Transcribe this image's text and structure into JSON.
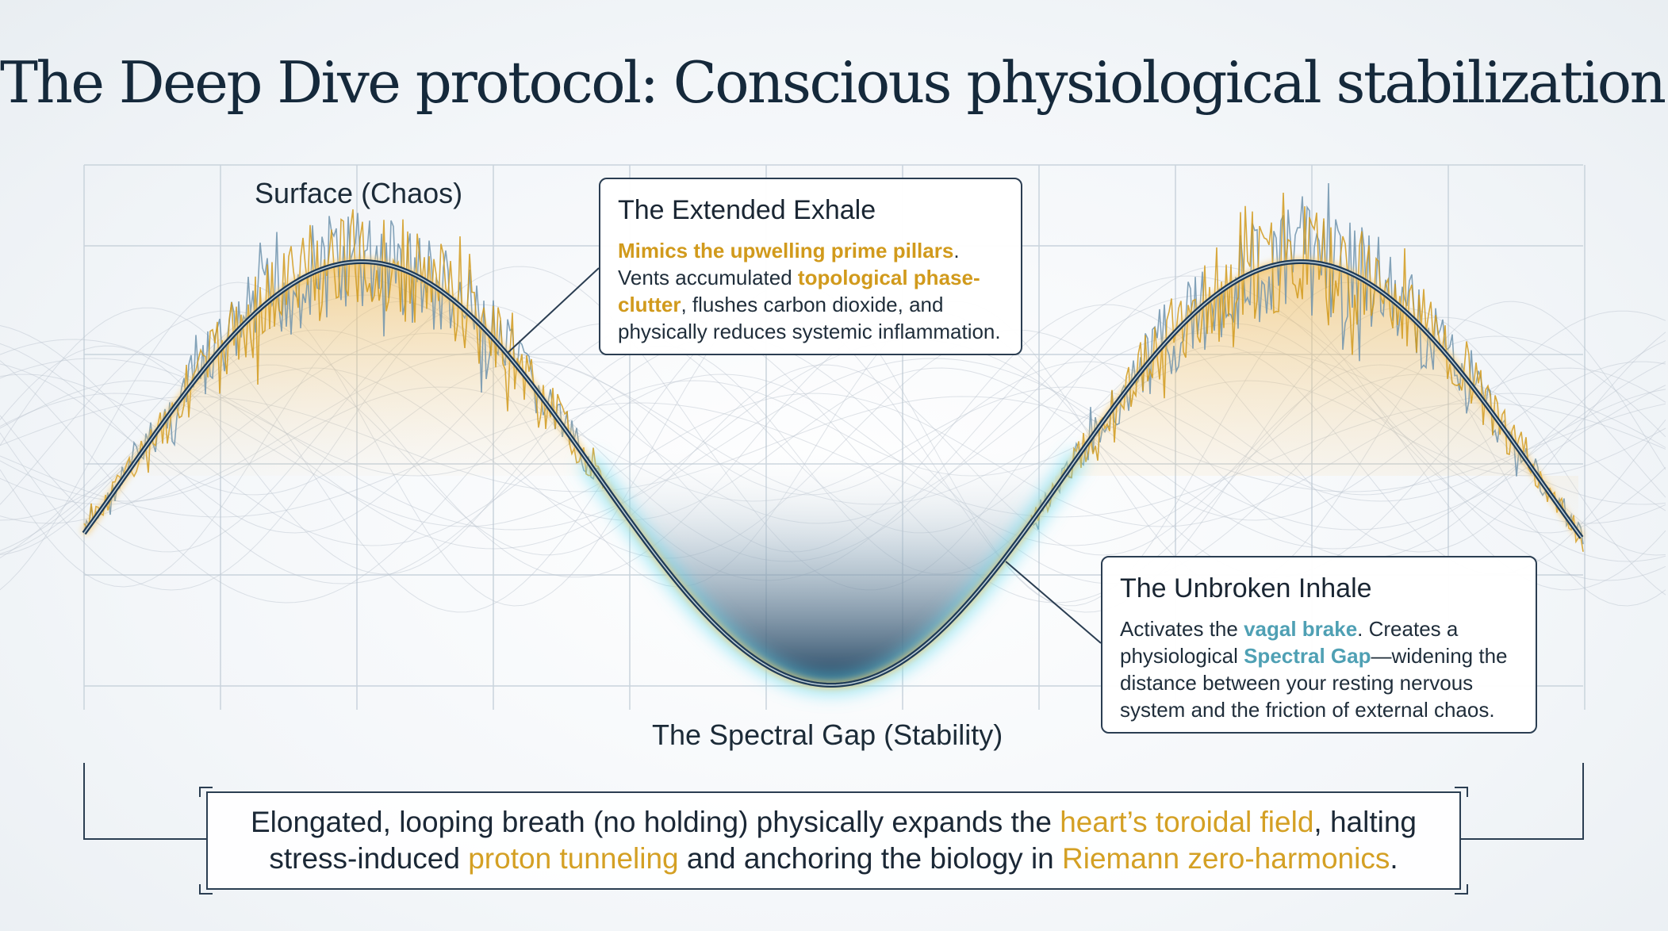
{
  "title": "The Deep Dive protocol: Conscious physiological stabilization.",
  "labels": {
    "surface": "Surface (Chaos)",
    "gap": "The Spectral Gap (Stability)"
  },
  "exhale": {
    "heading": "The Extended Exhale",
    "hl1": "Mimics the upwelling prime pillars",
    "t1": ". Vents accumulated ",
    "hl2": "topological phase-clutter",
    "t2": ", flushes carbon dioxide, and physically reduces systemic inflammation."
  },
  "inhale": {
    "heading": "The Unbroken Inhale",
    "t0": "Activates the ",
    "hl1": "vagal brake",
    "t1": ". Creates a physiological ",
    "hl2": "Spectral Gap",
    "t2": "—widening the distance between your resting nervous system and the friction of external chaos."
  },
  "bottom": {
    "a": "Elongated, looping breath (no holding) physically expands the ",
    "b": "heart’s toroidal field",
    "c": ", halting",
    "d": "stress-induced ",
    "e": "proton tunneling",
    "f": " and anchoring the biology in ",
    "g": "Riemann zero-harmonics",
    "h": "."
  },
  "colors": {
    "gold": "#d19a1c",
    "teal": "#4fa0b4",
    "navy": "#15293b",
    "glow": "#5fd9f0",
    "noise_blue": "#6f93ad"
  }
}
